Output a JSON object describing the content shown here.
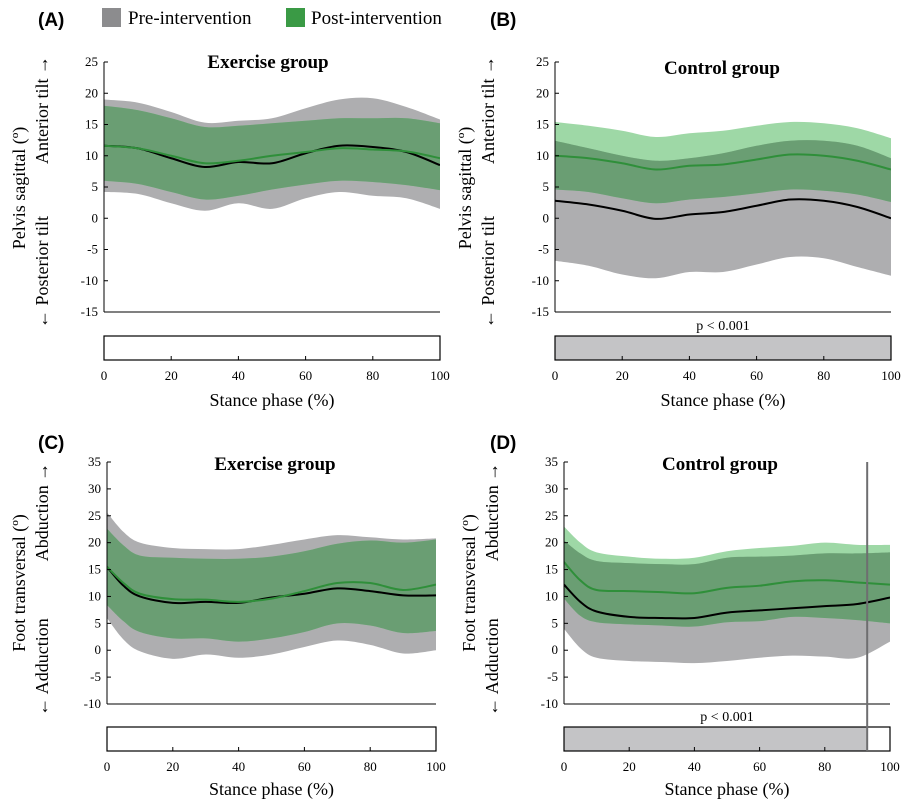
{
  "legend": {
    "items": [
      {
        "label": "Pre-intervention",
        "color": "#8c8c8e"
      },
      {
        "label": "Post-intervention",
        "color": "#3a9a45"
      }
    ]
  },
  "colors": {
    "pre_band": "#aeaeb0",
    "post_band": "#7ecb88",
    "overlap_band": "#6a9e73",
    "pre_line": "#000000",
    "post_line": "#2f8f3a",
    "spm_shade": "#c4c4c6"
  },
  "chart_data": [
    {
      "panel": "(A)",
      "type": "line",
      "title": "Exercise group",
      "ylabel": "Pelvis sagittal (º)",
      "ylabel_upper": "Anterior tilt →",
      "ylabel_lower": "← Posterior tilt",
      "xlabel": "Stance phase (%)",
      "xlim": [
        0,
        100
      ],
      "ylim": [
        -15,
        25
      ],
      "yticks": [
        25,
        20,
        15,
        10,
        5,
        0,
        -5,
        -10,
        -15
      ],
      "xticks": [
        0,
        20,
        40,
        60,
        80,
        100
      ],
      "p_label": "",
      "significant_ranges": [],
      "x": [
        0,
        10,
        20,
        30,
        40,
        50,
        60,
        70,
        80,
        90,
        100
      ],
      "series": [
        {
          "name": "Pre-intervention",
          "mean": [
            11.6,
            11.2,
            9.6,
            8.2,
            9.0,
            8.8,
            10.4,
            11.6,
            11.4,
            10.6,
            8.5
          ],
          "upper": [
            19.0,
            18.5,
            17.0,
            15.3,
            15.6,
            16.0,
            17.6,
            19.0,
            19.2,
            17.8,
            15.8
          ],
          "lower": [
            4.2,
            3.9,
            2.4,
            1.2,
            2.4,
            1.5,
            3.2,
            4.2,
            3.6,
            3.2,
            1.5
          ]
        },
        {
          "name": "Post-intervention",
          "mean": [
            11.6,
            11.2,
            10.0,
            8.8,
            9.2,
            10.0,
            10.6,
            11.2,
            11.0,
            10.7,
            9.6
          ],
          "upper": [
            18.0,
            17.3,
            16.0,
            14.6,
            14.8,
            15.2,
            15.6,
            16.0,
            16.0,
            16.0,
            15.2
          ],
          "lower": [
            6.0,
            5.5,
            4.2,
            3.0,
            3.6,
            4.6,
            5.4,
            6.0,
            5.8,
            5.3,
            4.5
          ]
        }
      ]
    },
    {
      "panel": "(B)",
      "type": "line",
      "title": "Control group",
      "ylabel": "Pelvis sagittal (º)",
      "ylabel_upper": "Anterior tilt →",
      "ylabel_lower": "← Posterior tilt",
      "xlabel": "Stance phase (%)",
      "xlim": [
        0,
        100
      ],
      "ylim": [
        -15,
        25
      ],
      "yticks": [
        25,
        20,
        15,
        10,
        5,
        0,
        -5,
        -10,
        -15
      ],
      "xticks": [
        0,
        20,
        40,
        60,
        80,
        100
      ],
      "p_label": "p < 0.001",
      "significant_ranges": [
        [
          0,
          100
        ]
      ],
      "x": [
        0,
        10,
        20,
        30,
        40,
        50,
        60,
        70,
        80,
        90,
        100
      ],
      "series": [
        {
          "name": "Pre-intervention",
          "mean": [
            2.8,
            2.2,
            1.2,
            -0.1,
            0.6,
            1.0,
            2.0,
            3.0,
            2.8,
            1.8,
            0.0
          ],
          "upper": [
            12.4,
            11.2,
            10.0,
            9.2,
            9.6,
            10.4,
            11.6,
            12.4,
            12.4,
            11.6,
            9.6
          ],
          "lower": [
            -6.8,
            -7.6,
            -9.0,
            -9.6,
            -8.6,
            -8.6,
            -7.4,
            -6.2,
            -6.4,
            -7.8,
            -9.2
          ]
        },
        {
          "name": "Post-intervention",
          "mean": [
            10.0,
            9.6,
            8.8,
            7.8,
            8.4,
            8.6,
            9.4,
            10.2,
            10.0,
            9.2,
            7.8
          ],
          "upper": [
            15.4,
            14.8,
            14.0,
            13.0,
            13.6,
            14.0,
            14.8,
            15.4,
            15.2,
            14.4,
            12.8
          ],
          "lower": [
            4.6,
            4.2,
            3.2,
            2.4,
            3.0,
            3.4,
            4.0,
            4.6,
            4.4,
            3.8,
            2.6
          ]
        }
      ]
    },
    {
      "panel": "(C)",
      "type": "line",
      "title": "Exercise group",
      "ylabel": "Foot transversal (º)",
      "ylabel_upper": "Abduction →",
      "ylabel_lower": "← Adduction",
      "xlabel": "Stance phase (%)",
      "xlim": [
        0,
        100
      ],
      "ylim": [
        -10,
        35
      ],
      "yticks": [
        35,
        30,
        25,
        20,
        15,
        10,
        5,
        0,
        -5,
        -10
      ],
      "xticks": [
        0,
        20,
        40,
        60,
        80,
        100
      ],
      "p_label": "",
      "significant_ranges": [],
      "x": [
        0,
        5,
        10,
        20,
        30,
        40,
        50,
        60,
        70,
        80,
        90,
        100
      ],
      "series": [
        {
          "name": "Pre-intervention",
          "mean": [
            15.5,
            12.0,
            10.0,
            8.8,
            9.0,
            8.8,
            9.8,
            10.5,
            11.5,
            11.0,
            10.2,
            10.2
          ],
          "upper": [
            25.6,
            22.0,
            20.0,
            19.0,
            18.8,
            18.8,
            19.6,
            20.6,
            21.4,
            21.0,
            20.6,
            20.8
          ],
          "lower": [
            6.0,
            2.0,
            -0.2,
            -1.6,
            -0.8,
            -1.4,
            -0.8,
            0.6,
            1.8,
            1.0,
            -0.6,
            0.0
          ]
        },
        {
          "name": "Post-intervention",
          "mean": [
            15.5,
            12.5,
            10.5,
            9.5,
            9.4,
            9.0,
            9.6,
            11.0,
            12.5,
            12.5,
            11.2,
            12.2
          ],
          "upper": [
            22.6,
            19.5,
            17.6,
            17.2,
            17.0,
            17.0,
            17.4,
            18.4,
            19.8,
            20.4,
            20.0,
            20.6
          ],
          "lower": [
            8.4,
            5.4,
            3.4,
            2.2,
            2.2,
            1.6,
            2.2,
            3.4,
            5.0,
            4.6,
            3.2,
            3.6
          ]
        }
      ]
    },
    {
      "panel": "(D)",
      "type": "line",
      "title": "Control group",
      "ylabel": "Foot transversal (º)",
      "ylabel_upper": "Abduction →",
      "ylabel_lower": "← Adduction",
      "xlabel": "Stance phase (%)",
      "xlim": [
        0,
        100
      ],
      "ylim": [
        -10,
        35
      ],
      "yticks": [
        35,
        30,
        25,
        20,
        15,
        10,
        5,
        0,
        -5,
        -10
      ],
      "xticks": [
        0,
        20,
        40,
        60,
        80,
        100
      ],
      "p_label": "p < 0.001",
      "significant_ranges": [
        [
          0,
          93
        ]
      ],
      "vertical_marker_x": 93,
      "x": [
        0,
        5,
        10,
        20,
        30,
        40,
        50,
        60,
        70,
        80,
        90,
        100
      ],
      "series": [
        {
          "name": "Pre-intervention",
          "mean": [
            12.2,
            9.0,
            7.2,
            6.2,
            6.0,
            6.0,
            7.0,
            7.4,
            7.8,
            8.2,
            8.6,
            9.8
          ],
          "upper": [
            20.4,
            18.0,
            16.6,
            16.2,
            16.0,
            16.0,
            17.2,
            17.4,
            17.6,
            18.0,
            18.0,
            18.2
          ],
          "lower": [
            4.0,
            0.4,
            -1.4,
            -2.0,
            -2.2,
            -2.4,
            -2.0,
            -1.4,
            -1.0,
            -1.2,
            -1.4,
            1.6
          ]
        },
        {
          "name": "Post-intervention",
          "mean": [
            16.4,
            13.0,
            11.2,
            11.0,
            10.8,
            10.6,
            11.6,
            12.0,
            12.8,
            13.0,
            12.6,
            12.2
          ],
          "upper": [
            23.0,
            20.0,
            18.2,
            17.4,
            17.0,
            17.2,
            18.4,
            19.0,
            19.4,
            20.0,
            19.6,
            19.6
          ],
          "lower": [
            9.6,
            6.4,
            5.2,
            4.8,
            4.6,
            4.4,
            5.2,
            5.4,
            6.2,
            6.0,
            5.6,
            5.0
          ]
        }
      ]
    }
  ]
}
